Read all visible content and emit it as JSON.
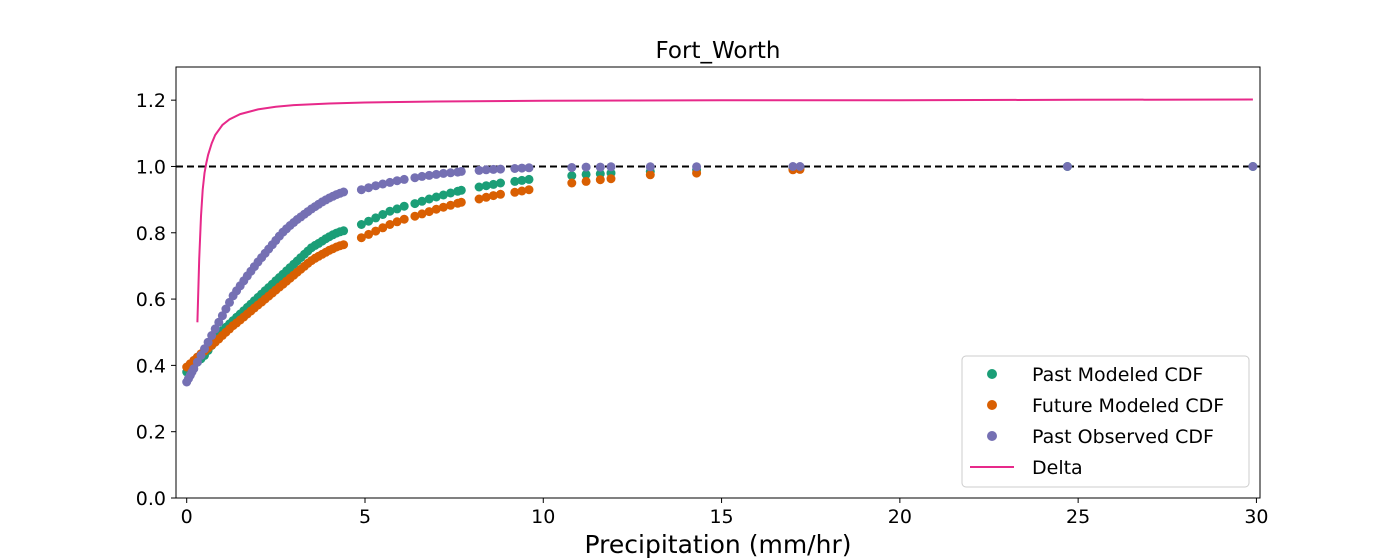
{
  "chart_data": {
    "type": "scatter",
    "title": "Fort_Worth",
    "xlabel": "Precipitation (mm/hr)",
    "ylabel": "",
    "xlim": [
      -0.3,
      30.1
    ],
    "ylim": [
      0.0,
      1.3
    ],
    "xticks": [
      0,
      5,
      10,
      15,
      20,
      25,
      30
    ],
    "yticks": [
      0.0,
      0.2,
      0.4,
      0.6,
      0.8,
      1.0,
      1.2
    ],
    "xtick_labels": [
      "0",
      "5",
      "10",
      "15",
      "20",
      "25",
      "30"
    ],
    "ytick_labels": [
      "0.0",
      "0.2",
      "0.4",
      "0.6",
      "0.8",
      "1.0",
      "1.2"
    ],
    "grid": false,
    "legend_position": "lower-right",
    "reference_line": {
      "y": 1.0,
      "style": "dashed",
      "color": "#000000"
    },
    "colors": {
      "past_modeled": "#1b9e77",
      "future_modeled": "#d95f02",
      "past_observed": "#7570b3",
      "delta": "#e7298a"
    },
    "series": [
      {
        "name": "Past Modeled CDF",
        "kind": "points",
        "color": "#1b9e77",
        "x": [
          0.0,
          0.1,
          0.2,
          0.3,
          0.4,
          0.5,
          0.6,
          0.7,
          0.8,
          0.9,
          1.0,
          1.1,
          1.2,
          1.3,
          1.4,
          1.5,
          1.6,
          1.7,
          1.8,
          1.9,
          2.0,
          2.1,
          2.2,
          2.3,
          2.4,
          2.5,
          2.6,
          2.7,
          2.8,
          2.9,
          3.0,
          3.1,
          3.2,
          3.3,
          3.4,
          3.5,
          3.6,
          3.7,
          3.8,
          3.9,
          4.0,
          4.1,
          4.2,
          4.3,
          4.4,
          4.9,
          5.1,
          5.3,
          5.5,
          5.7,
          5.9,
          6.1,
          6.4,
          6.6,
          6.8,
          7.0,
          7.2,
          7.4,
          7.6,
          7.7,
          8.2,
          8.4,
          8.6,
          8.8,
          9.2,
          9.4,
          9.6,
          10.8,
          11.2,
          11.6,
          11.9,
          13.0,
          14.3,
          17.0,
          17.2,
          24.7,
          29.9
        ],
        "y": [
          0.38,
          0.39,
          0.4,
          0.41,
          0.42,
          0.43,
          0.445,
          0.46,
          0.475,
          0.49,
          0.505,
          0.515,
          0.525,
          0.535,
          0.545,
          0.555,
          0.565,
          0.575,
          0.585,
          0.595,
          0.605,
          0.615,
          0.625,
          0.635,
          0.645,
          0.655,
          0.665,
          0.675,
          0.685,
          0.695,
          0.705,
          0.715,
          0.725,
          0.735,
          0.745,
          0.755,
          0.762,
          0.768,
          0.775,
          0.782,
          0.788,
          0.794,
          0.799,
          0.803,
          0.806,
          0.825,
          0.835,
          0.845,
          0.855,
          0.865,
          0.872,
          0.88,
          0.888,
          0.895,
          0.902,
          0.908,
          0.914,
          0.92,
          0.925,
          0.928,
          0.938,
          0.942,
          0.946,
          0.95,
          0.955,
          0.958,
          0.961,
          0.972,
          0.976,
          0.978,
          0.98,
          0.985,
          0.99,
          0.995,
          0.996,
          1.0,
          1.0
        ]
      },
      {
        "name": "Future Modeled CDF",
        "kind": "points",
        "color": "#d95f02",
        "x": [
          0.0,
          0.1,
          0.2,
          0.3,
          0.4,
          0.5,
          0.6,
          0.7,
          0.8,
          0.9,
          1.0,
          1.1,
          1.2,
          1.3,
          1.4,
          1.5,
          1.6,
          1.7,
          1.8,
          1.9,
          2.0,
          2.1,
          2.2,
          2.3,
          2.4,
          2.5,
          2.6,
          2.7,
          2.8,
          2.9,
          3.0,
          3.1,
          3.2,
          3.3,
          3.4,
          3.5,
          3.6,
          3.7,
          3.8,
          3.9,
          4.0,
          4.1,
          4.2,
          4.3,
          4.4,
          4.9,
          5.1,
          5.3,
          5.5,
          5.7,
          5.9,
          6.1,
          6.4,
          6.6,
          6.8,
          7.0,
          7.2,
          7.4,
          7.6,
          7.7,
          8.2,
          8.4,
          8.6,
          8.8,
          9.2,
          9.4,
          9.6,
          10.8,
          11.2,
          11.6,
          11.9,
          13.0,
          14.3,
          17.0,
          17.2
        ],
        "y": [
          0.395,
          0.405,
          0.415,
          0.425,
          0.435,
          0.443,
          0.452,
          0.461,
          0.47,
          0.48,
          0.49,
          0.5,
          0.51,
          0.52,
          0.528,
          0.537,
          0.546,
          0.555,
          0.564,
          0.573,
          0.582,
          0.591,
          0.6,
          0.609,
          0.618,
          0.627,
          0.636,
          0.645,
          0.654,
          0.663,
          0.672,
          0.681,
          0.69,
          0.699,
          0.708,
          0.716,
          0.723,
          0.729,
          0.735,
          0.741,
          0.747,
          0.752,
          0.757,
          0.761,
          0.764,
          0.785,
          0.795,
          0.805,
          0.815,
          0.825,
          0.833,
          0.841,
          0.85,
          0.857,
          0.864,
          0.871,
          0.877,
          0.883,
          0.889,
          0.892,
          0.902,
          0.907,
          0.912,
          0.916,
          0.922,
          0.926,
          0.93,
          0.95,
          0.955,
          0.96,
          0.963,
          0.975,
          0.98,
          0.99,
          0.991
        ]
      },
      {
        "name": "Past Observed CDF",
        "kind": "points",
        "color": "#7570b3",
        "x": [
          0.0,
          0.05,
          0.1,
          0.15,
          0.2,
          0.3,
          0.4,
          0.5,
          0.6,
          0.7,
          0.8,
          0.9,
          1.0,
          1.1,
          1.2,
          1.3,
          1.4,
          1.5,
          1.6,
          1.7,
          1.8,
          1.9,
          2.0,
          2.1,
          2.2,
          2.3,
          2.4,
          2.5,
          2.6,
          2.7,
          2.8,
          2.9,
          3.0,
          3.1,
          3.2,
          3.3,
          3.4,
          3.5,
          3.6,
          3.7,
          3.8,
          3.9,
          4.0,
          4.1,
          4.2,
          4.3,
          4.4,
          4.9,
          5.1,
          5.3,
          5.5,
          5.7,
          5.9,
          6.1,
          6.4,
          6.6,
          6.8,
          7.0,
          7.2,
          7.4,
          7.6,
          7.7,
          8.2,
          8.4,
          8.6,
          8.8,
          9.2,
          9.4,
          9.6,
          10.8,
          11.2,
          11.6,
          11.9,
          13.0,
          14.3,
          17.0,
          17.2,
          24.7,
          29.9
        ],
        "y": [
          0.35,
          0.36,
          0.37,
          0.38,
          0.39,
          0.41,
          0.43,
          0.45,
          0.47,
          0.49,
          0.51,
          0.53,
          0.55,
          0.57,
          0.59,
          0.61,
          0.625,
          0.64,
          0.655,
          0.67,
          0.684,
          0.698,
          0.712,
          0.725,
          0.738,
          0.751,
          0.764,
          0.777,
          0.79,
          0.802,
          0.812,
          0.822,
          0.831,
          0.84,
          0.848,
          0.856,
          0.864,
          0.872,
          0.879,
          0.886,
          0.893,
          0.899,
          0.905,
          0.91,
          0.915,
          0.919,
          0.923,
          0.93,
          0.936,
          0.942,
          0.947,
          0.952,
          0.957,
          0.961,
          0.966,
          0.97,
          0.973,
          0.976,
          0.979,
          0.981,
          0.983,
          0.985,
          0.988,
          0.99,
          0.991,
          0.992,
          0.994,
          0.995,
          0.996,
          0.997,
          0.998,
          0.998,
          0.999,
          0.999,
          0.999,
          1.0,
          1.0,
          1.0,
          1.0
        ]
      },
      {
        "name": "Delta",
        "kind": "line",
        "color": "#e7298a",
        "x": [
          0.3,
          0.35,
          0.4,
          0.45,
          0.5,
          0.55,
          0.6,
          0.7,
          0.8,
          1.0,
          1.2,
          1.5,
          2.0,
          2.5,
          3.0,
          4.0,
          5.0,
          7.0,
          10.0,
          15.0,
          20.0,
          25.0,
          29.9
        ],
        "y": [
          0.53,
          0.72,
          0.85,
          0.93,
          0.98,
          1.01,
          1.035,
          1.07,
          1.095,
          1.125,
          1.142,
          1.158,
          1.172,
          1.18,
          1.185,
          1.19,
          1.193,
          1.196,
          1.198,
          1.2,
          1.2,
          1.201,
          1.202
        ]
      }
    ]
  }
}
